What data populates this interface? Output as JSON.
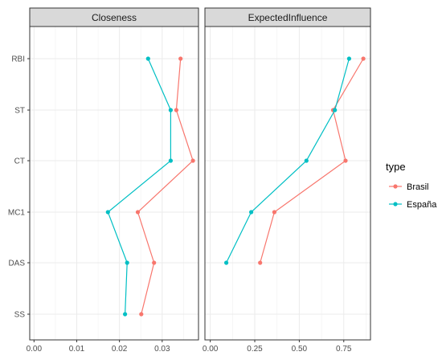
{
  "chart_data": {
    "type": "line",
    "categories": [
      "RBI",
      "ST",
      "CT",
      "MC1",
      "DAS",
      "SS"
    ],
    "legend": {
      "title": "type",
      "position": "right",
      "entries": [
        "Brasil",
        "España"
      ]
    },
    "colors": {
      "Brasil": "#F8766D",
      "España": "#00BFC4"
    },
    "grid": true,
    "panels": [
      {
        "title": "Closeness",
        "xlim": [
          -0.001,
          0.0385
        ],
        "xticks": [
          0.0,
          0.01,
          0.02,
          0.03
        ],
        "xtick_labels": [
          "0.00",
          "0.01",
          "0.02",
          "0.03"
        ],
        "series": [
          {
            "name": "Brasil",
            "values": [
              0.0343,
              0.0333,
              0.0372,
              0.0243,
              0.0281,
              0.0251
            ]
          },
          {
            "name": "España",
            "values": [
              0.0267,
              0.032,
              0.032,
              0.0173,
              0.0218,
              0.0213
            ]
          }
        ]
      },
      {
        "title": "ExpectedInfluence",
        "xlim": [
          -0.03,
          0.9
        ],
        "xticks": [
          0.0,
          0.25,
          0.5,
          0.75
        ],
        "xtick_labels": [
          "0.00",
          "0.25",
          "0.50",
          "0.75"
        ],
        "series": [
          {
            "name": "Brasil",
            "values": [
              0.86,
              0.69,
              0.76,
              0.36,
              0.28,
              null
            ]
          },
          {
            "name": "España",
            "values": [
              0.78,
              0.7,
              0.54,
              0.23,
              0.09,
              null
            ]
          }
        ]
      }
    ]
  }
}
